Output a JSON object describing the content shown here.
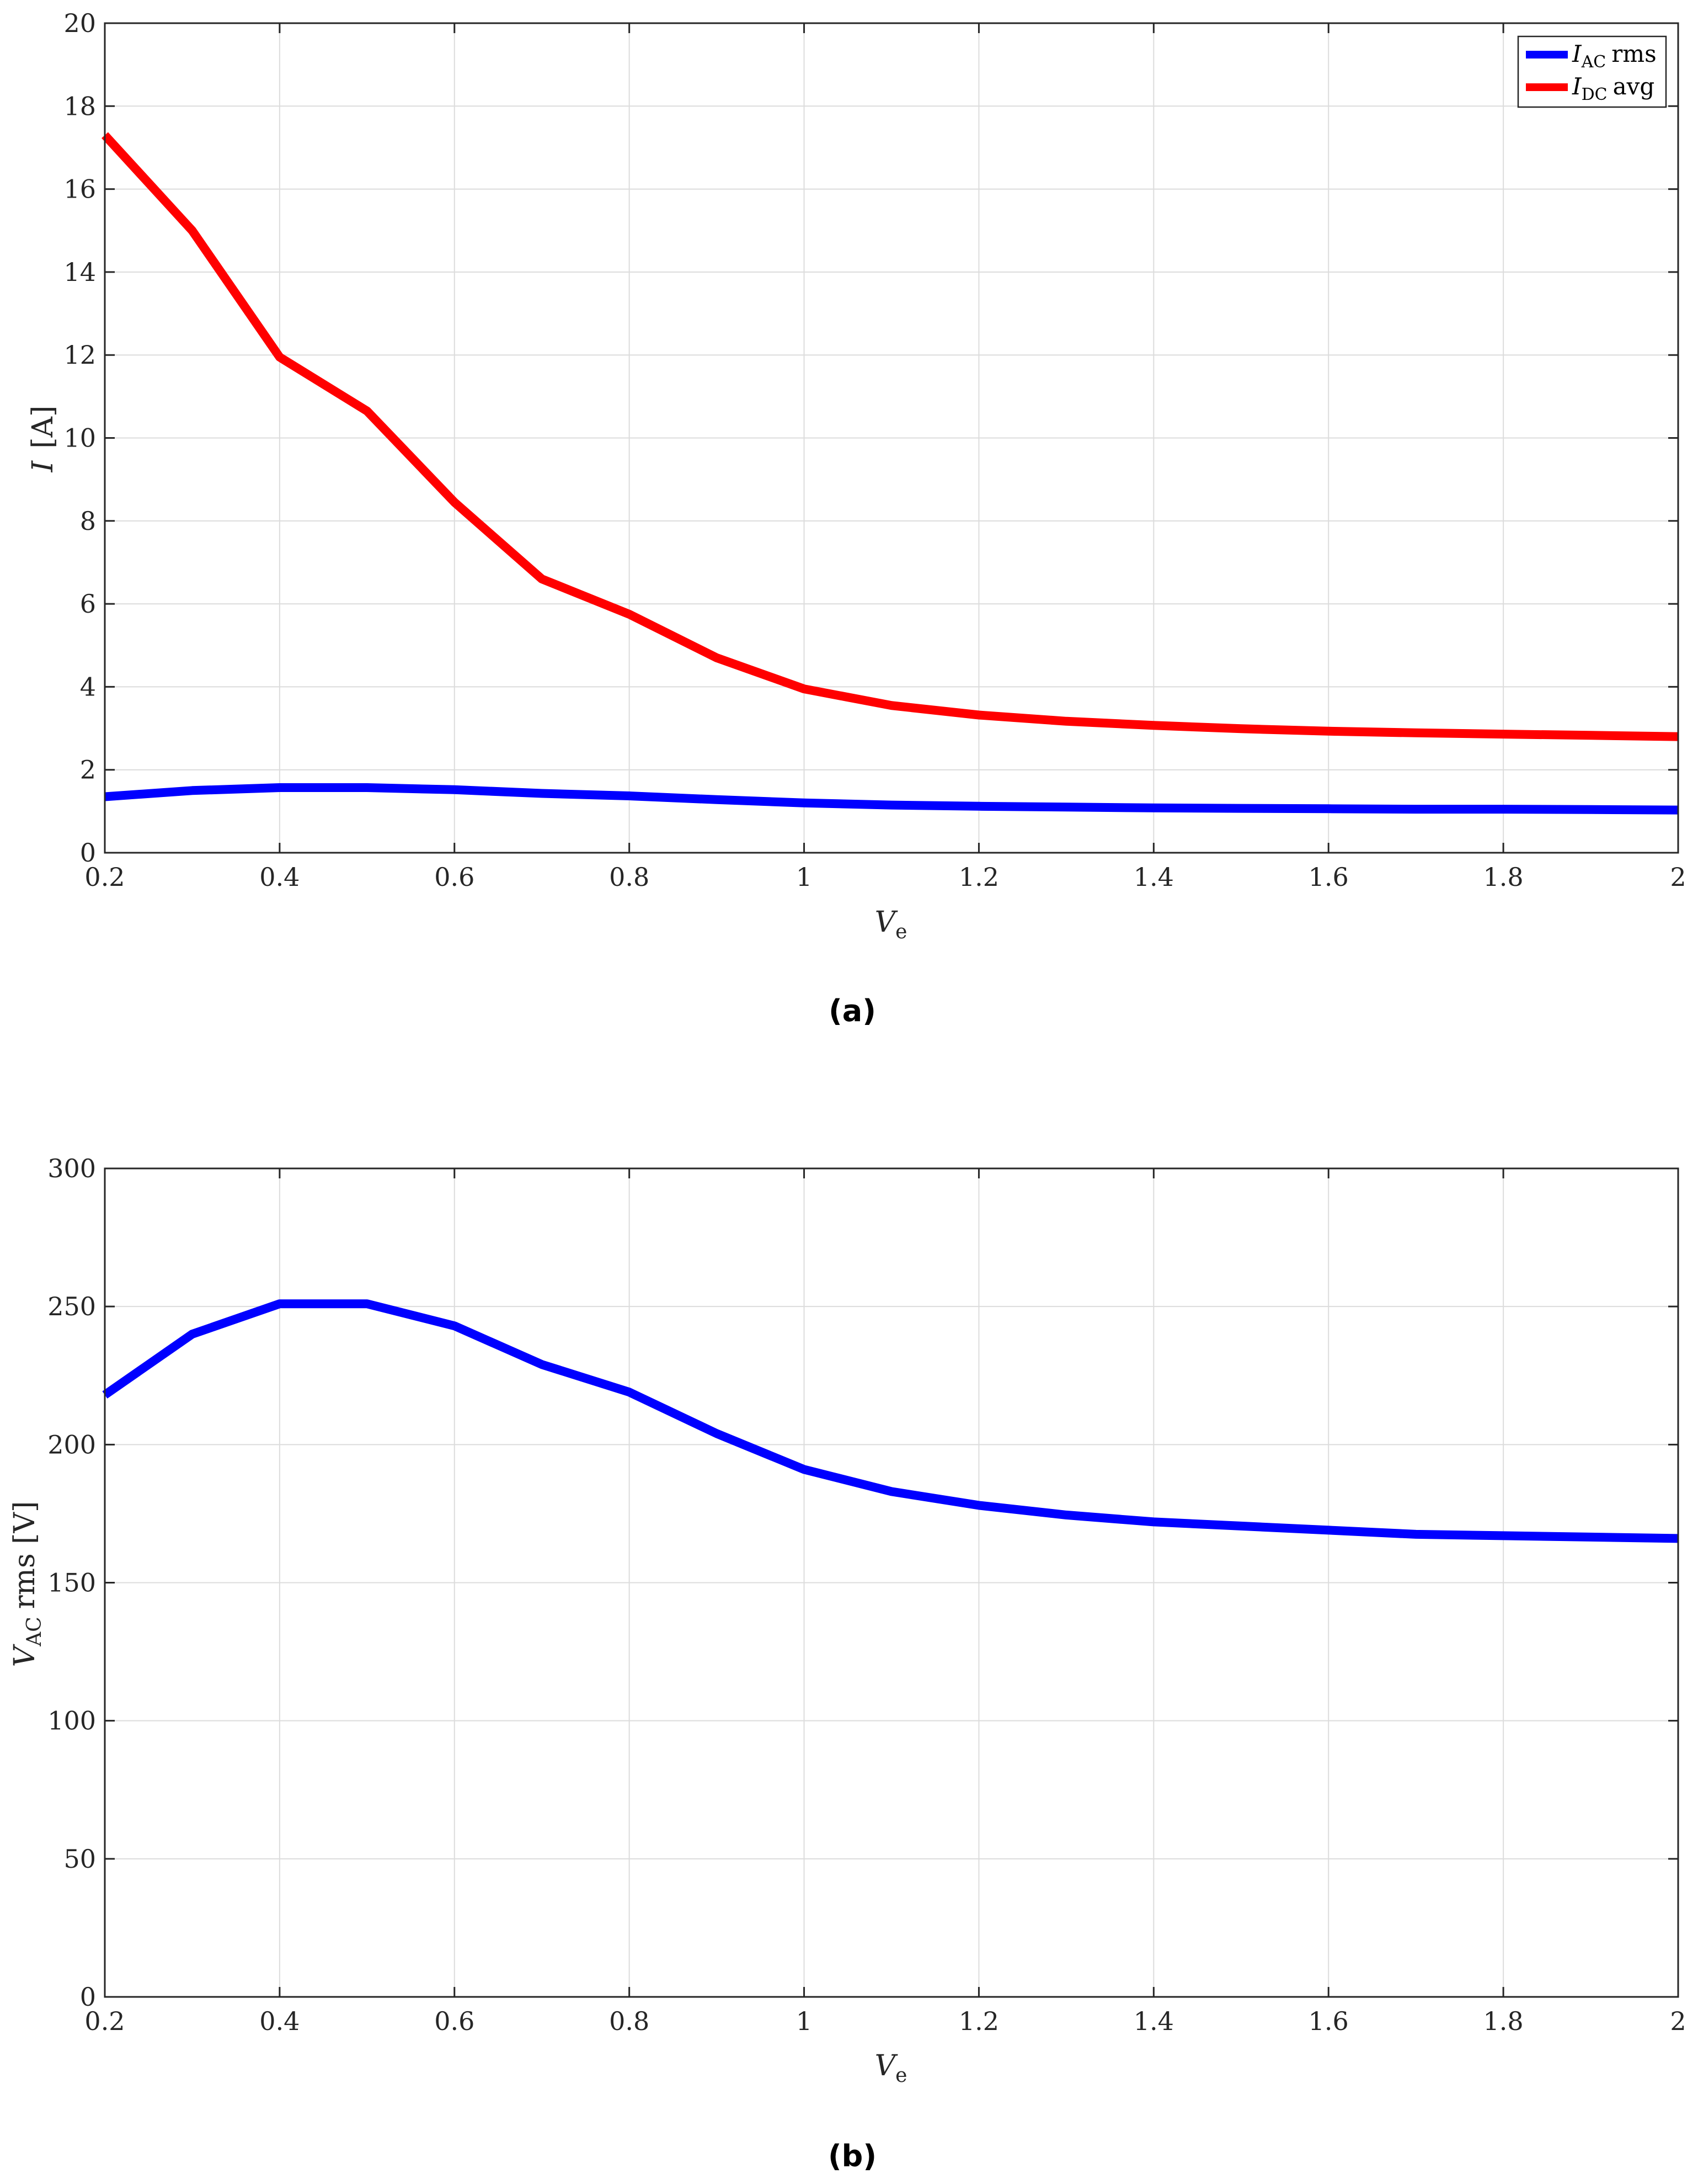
{
  "figure": {
    "caption_a": "(a)",
    "caption_b": "(b)"
  },
  "chart_data": [
    {
      "type": "line",
      "xlabel": {
        "main": "V",
        "sub": "e"
      },
      "ylabel": {
        "main": "I",
        "rest": "[A]"
      },
      "xlim": [
        0.2,
        2
      ],
      "ylim": [
        0,
        20
      ],
      "xticks": [
        0.2,
        0.4,
        0.6,
        0.8,
        1,
        1.2,
        1.4,
        1.6,
        1.8,
        2
      ],
      "yticks": [
        0,
        2,
        4,
        6,
        8,
        10,
        12,
        14,
        16,
        18,
        20
      ],
      "grid": true,
      "legend_position": "top-right",
      "x": [
        0.2,
        0.3,
        0.4,
        0.5,
        0.6,
        0.7,
        0.8,
        0.9,
        1.0,
        1.1,
        1.2,
        1.3,
        1.4,
        1.5,
        1.6,
        1.7,
        1.8,
        1.9,
        2.0
      ],
      "series": [
        {
          "name": {
            "main": "I",
            "sub": "AC",
            "rest": "rms"
          },
          "color": "#0000ff",
          "values": [
            1.35,
            1.5,
            1.57,
            1.57,
            1.52,
            1.43,
            1.37,
            1.28,
            1.2,
            1.15,
            1.12,
            1.1,
            1.08,
            1.07,
            1.06,
            1.05,
            1.05,
            1.04,
            1.03
          ]
        },
        {
          "name": {
            "main": "I",
            "sub": "DC",
            "rest": "avg"
          },
          "color": "#ff0000",
          "values": [
            17.3,
            15.0,
            11.95,
            10.65,
            8.45,
            6.6,
            5.75,
            4.7,
            3.95,
            3.55,
            3.32,
            3.17,
            3.07,
            2.99,
            2.93,
            2.89,
            2.86,
            2.83,
            2.8
          ]
        }
      ]
    },
    {
      "type": "line",
      "xlabel": {
        "main": "V",
        "sub": "e"
      },
      "ylabel": {
        "main": "V",
        "sub": "AC",
        "rest": "rms [V]"
      },
      "xlim": [
        0.2,
        2
      ],
      "ylim": [
        0,
        300
      ],
      "xticks": [
        0.2,
        0.4,
        0.6,
        0.8,
        1,
        1.2,
        1.4,
        1.6,
        1.8,
        2
      ],
      "yticks": [
        0,
        50,
        100,
        150,
        200,
        250,
        300
      ],
      "grid": true,
      "x": [
        0.2,
        0.3,
        0.4,
        0.5,
        0.6,
        0.7,
        0.8,
        0.9,
        1.0,
        1.1,
        1.2,
        1.3,
        1.4,
        1.5,
        1.6,
        1.7,
        1.8,
        1.9,
        2.0
      ],
      "series": [
        {
          "color": "#0000ff",
          "values": [
            218,
            240,
            251,
            251,
            243,
            229,
            219,
            204,
            191,
            183,
            178,
            174.5,
            172,
            170.5,
            169,
            167.5,
            167,
            166.5,
            166
          ]
        }
      ]
    }
  ]
}
